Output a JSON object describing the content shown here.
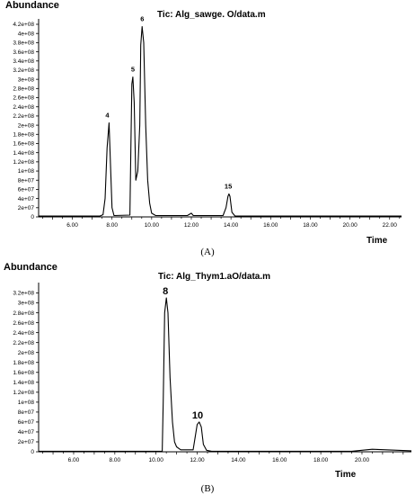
{
  "chart_data": [
    {
      "type": "line",
      "panel_label": "(A)",
      "title": "Tic: Alg_sawge. O/data.m",
      "ylabel": "Abundance",
      "xlabel": "Time",
      "xlim": [
        4.3,
        22.6
      ],
      "ylim": [
        0,
        420000000
      ],
      "x_ticks": [
        "6.00",
        "8.00",
        "10.00",
        "12.00",
        "14.00",
        "16.00",
        "18.00",
        "20.00",
        "22.00"
      ],
      "y_ticks": [
        "0",
        "2e+07",
        "4e+07",
        "6e+07",
        "8e+07",
        "1e+08",
        "1.2e+08",
        "1.4e+08",
        "1.6e+08",
        "1.8e+08",
        "2e+08",
        "2.2e+08",
        "2.4e+08",
        "2.6e+08",
        "2.8e+08",
        "3e+08",
        "3.2e+08",
        "3.4e+08",
        "3.6e+08",
        "3.8e+08",
        "4e+08",
        "4.2e+08"
      ],
      "peaks": [
        {
          "label": "4",
          "x": 7.85,
          "y": 205000000
        },
        {
          "label": "5",
          "x": 9.05,
          "y": 305000000
        },
        {
          "label": "6",
          "x": 9.52,
          "y": 415000000
        },
        {
          "label": "15",
          "x": 13.9,
          "y": 50000000
        }
      ],
      "trace": [
        [
          4.3,
          2000000
        ],
        [
          7.4,
          2000000
        ],
        [
          7.55,
          5000000
        ],
        [
          7.65,
          40000000
        ],
        [
          7.75,
          150000000
        ],
        [
          7.85,
          205000000
        ],
        [
          7.92,
          120000000
        ],
        [
          8.0,
          20000000
        ],
        [
          8.1,
          3000000
        ],
        [
          8.9,
          4000000
        ],
        [
          8.95,
          150000000
        ],
        [
          9.0,
          290000000
        ],
        [
          9.05,
          305000000
        ],
        [
          9.12,
          250000000
        ],
        [
          9.2,
          80000000
        ],
        [
          9.3,
          100000000
        ],
        [
          9.4,
          200000000
        ],
        [
          9.45,
          375000000
        ],
        [
          9.52,
          415000000
        ],
        [
          9.6,
          380000000
        ],
        [
          9.7,
          200000000
        ],
        [
          9.8,
          80000000
        ],
        [
          9.9,
          30000000
        ],
        [
          10.0,
          8000000
        ],
        [
          10.2,
          3000000
        ],
        [
          11.8,
          3000000
        ],
        [
          12.0,
          8000000
        ],
        [
          12.1,
          3000000
        ],
        [
          13.6,
          3000000
        ],
        [
          13.75,
          20000000
        ],
        [
          13.85,
          45000000
        ],
        [
          13.9,
          50000000
        ],
        [
          13.95,
          45000000
        ],
        [
          14.05,
          10000000
        ],
        [
          14.2,
          2000000
        ],
        [
          22.6,
          2000000
        ]
      ]
    },
    {
      "type": "line",
      "panel_label": "(B)",
      "title": "Tic: Alg_Thym1.aO/data.m",
      "ylabel": "Abundance",
      "xlabel": "Time",
      "xlim": [
        4.3,
        22.4
      ],
      "ylim": [
        0,
        330000000
      ],
      "x_ticks": [
        "6.00",
        "8.00",
        "10.00",
        "12.00",
        "14.00",
        "16.00",
        "18.00",
        "20.00"
      ],
      "y_ticks": [
        "0",
        "2e+07",
        "4e+07",
        "6e+07",
        "8e+07",
        "1e+08",
        "1.2e+08",
        "1.4e+08",
        "1.6e+08",
        "1.8e+08",
        "2e+08",
        "2.2e+08",
        "2.4e+08",
        "2.6e+08",
        "2.8e+08",
        "3e+08",
        "3.2e+08"
      ],
      "peaks": [
        {
          "label": "8",
          "x": 10.5,
          "y": 310000000
        },
        {
          "label": "10",
          "x": 12.1,
          "y": 60000000
        }
      ],
      "trace": [
        [
          4.3,
          1000000
        ],
        [
          10.3,
          1000000
        ],
        [
          10.35,
          100000000
        ],
        [
          10.42,
          280000000
        ],
        [
          10.5,
          310000000
        ],
        [
          10.58,
          280000000
        ],
        [
          10.68,
          150000000
        ],
        [
          10.8,
          60000000
        ],
        [
          10.9,
          20000000
        ],
        [
          11.0,
          10000000
        ],
        [
          11.2,
          4000000
        ],
        [
          11.8,
          4000000
        ],
        [
          11.9,
          30000000
        ],
        [
          12.0,
          55000000
        ],
        [
          12.1,
          60000000
        ],
        [
          12.2,
          50000000
        ],
        [
          12.3,
          15000000
        ],
        [
          12.45,
          3000000
        ],
        [
          12.7,
          1000000
        ],
        [
          19.5,
          1000000
        ],
        [
          20.5,
          5000000
        ],
        [
          22.4,
          2000000
        ]
      ]
    }
  ]
}
